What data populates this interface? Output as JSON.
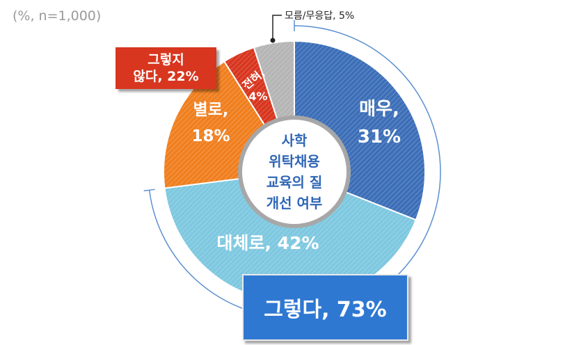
{
  "note": "(%, n=1,000)",
  "center_label": [
    "사학",
    "위탁채용",
    "교육의 질",
    "개선 여부"
  ],
  "colors": {
    "very": "#3d6fb8",
    "mostly": "#7ec8e0",
    "not_much": "#f07f1f",
    "not_at_all": "#d8361f",
    "unknown": "#b5b5b5",
    "bracket": "#5b8fd0"
  },
  "chart_data": {
    "type": "pie",
    "slices": [
      {
        "label": "매우,",
        "value_label": "31%",
        "value": 31,
        "color": "#3d6fb8"
      },
      {
        "label": "대체로, 42%",
        "value_label": "",
        "value": 42,
        "color": "#7ec8e0"
      },
      {
        "label": "별로,",
        "value_label": "18%",
        "value": 18,
        "color": "#f07f1f"
      },
      {
        "label": "전혀,",
        "value_label": "4%",
        "value": 4,
        "color": "#d8361f"
      },
      {
        "label": "모름/무응답, 5%",
        "value_label": "",
        "value": 5,
        "color": "#b5b5b5"
      }
    ],
    "groups": [
      {
        "label": "그렇다, 73%",
        "value": 73
      },
      {
        "label_lines": [
          "그렇지",
          "않다, 22%"
        ],
        "value": 22
      }
    ]
  }
}
